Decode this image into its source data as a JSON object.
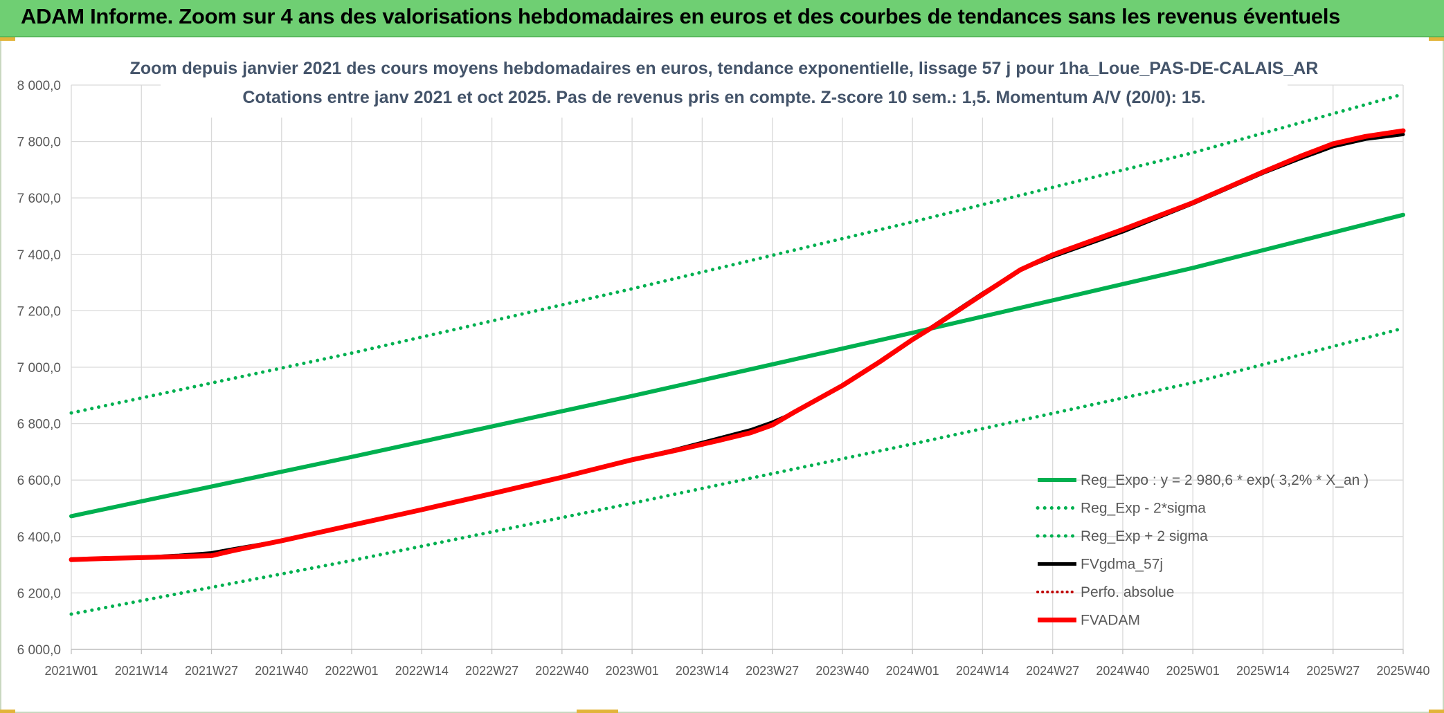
{
  "banner": {
    "title": "ADAM Informe. Zoom sur 4 ans des valorisations hebdomadaires en euros et des courbes de tendances sans les revenus éventuels"
  },
  "colors": {
    "banner_bg": "#6fcf73",
    "reg_expo": "#00b050",
    "fvgdma": "#000000",
    "fvadam": "#ff0000",
    "perfo": "#c00000"
  },
  "chart_data": {
    "type": "line",
    "title": "Zoom depuis janvier 2021 des cours moyens hebdomadaires en euros, tendance exponentielle, lissage 57 j pour 1ha_Loue_PAS-DE-CALAIS_AR",
    "subtitle": "Cotations entre janv 2021 et oct 2025. Pas de revenus pris en compte. Z-score 10 sem.: 1,5. Momentum A/V (20/0): 15.",
    "xlabel": "",
    "ylabel": "",
    "ylim": [
      6000,
      8000
    ],
    "y_ticks": [
      6000,
      6200,
      6400,
      6600,
      6800,
      7000,
      7200,
      7400,
      7600,
      7800,
      8000
    ],
    "y_tick_labels": [
      "6 000,0",
      "6 200,0",
      "6 400,0",
      "6 600,0",
      "6 800,0",
      "7 000,0",
      "7 200,0",
      "7 400,0",
      "7 600,0",
      "7 800,0",
      "8 000,0"
    ],
    "x_range": [
      0,
      247
    ],
    "x_ticks": [
      0,
      13,
      26,
      39,
      52,
      65,
      78,
      91,
      104,
      117,
      130,
      143,
      156,
      169,
      182,
      195,
      208,
      221,
      234,
      247
    ],
    "x_tick_labels": [
      "2021W01",
      "2021W14",
      "2021W27",
      "2021W40",
      "2022W01",
      "2022W14",
      "2022W27",
      "2022W40",
      "2023W01",
      "2023W14",
      "2023W27",
      "2023W40",
      "2024W01",
      "2024W14",
      "2024W27",
      "2024W40",
      "2025W01",
      "2025W14",
      "2025W27",
      "2025W40"
    ],
    "grid": true,
    "legend_position": "bottom-right",
    "series": [
      {
        "name": "Reg_Expo : y = 2 980,6 * exp( 3,2% *  X_an )",
        "style": "solid",
        "x": [
          0,
          52,
          104,
          156,
          208,
          247
        ],
        "values": [
          6472,
          6682,
          6898,
          7122,
          7352,
          7540
        ]
      },
      {
        "name": "Reg_Exp - 2*sigma",
        "style": "dotted",
        "x": [
          0,
          52,
          104,
          156,
          208,
          247
        ],
        "values": [
          6125,
          6315,
          6518,
          6728,
          6945,
          7138
        ]
      },
      {
        "name": "Reg_Exp + 2 sigma",
        "style": "dotted",
        "x": [
          0,
          52,
          104,
          156,
          208,
          247
        ],
        "values": [
          6838,
          7050,
          7278,
          7515,
          7760,
          7968
        ]
      },
      {
        "name": "FVgdma_57j",
        "style": "solid",
        "x": [
          0,
          6,
          13,
          20,
          26,
          30,
          39,
          52,
          65,
          78,
          91,
          104,
          112,
          120,
          126,
          130,
          134,
          143,
          150,
          156,
          160,
          169,
          176,
          182,
          195,
          208,
          221,
          228,
          234,
          240,
          247
        ],
        "values": [
          6320,
          6323,
          6326,
          6333,
          6342,
          6356,
          6385,
          6440,
          6495,
          6552,
          6610,
          6672,
          6708,
          6748,
          6778,
          6805,
          6838,
          6935,
          7020,
          7098,
          7148,
          7262,
          7345,
          7392,
          7480,
          7580,
          7688,
          7740,
          7782,
          7808,
          7825
        ]
      },
      {
        "name": "Perfo. absolue",
        "style": "dotted",
        "x": [],
        "values": []
      },
      {
        "name": "FVADAM",
        "style": "solid",
        "x": [
          0,
          6,
          13,
          20,
          26,
          30,
          39,
          52,
          65,
          78,
          91,
          104,
          112,
          120,
          126,
          130,
          134,
          143,
          150,
          156,
          160,
          169,
          176,
          182,
          195,
          208,
          221,
          228,
          234,
          240,
          247
        ],
        "values": [
          6318,
          6322,
          6325,
          6329,
          6332,
          6350,
          6385,
          6440,
          6495,
          6552,
          6610,
          6672,
          6705,
          6740,
          6768,
          6795,
          6840,
          6935,
          7020,
          7098,
          7145,
          7258,
          7345,
          7398,
          7488,
          7583,
          7692,
          7748,
          7792,
          7818,
          7838
        ]
      }
    ]
  }
}
